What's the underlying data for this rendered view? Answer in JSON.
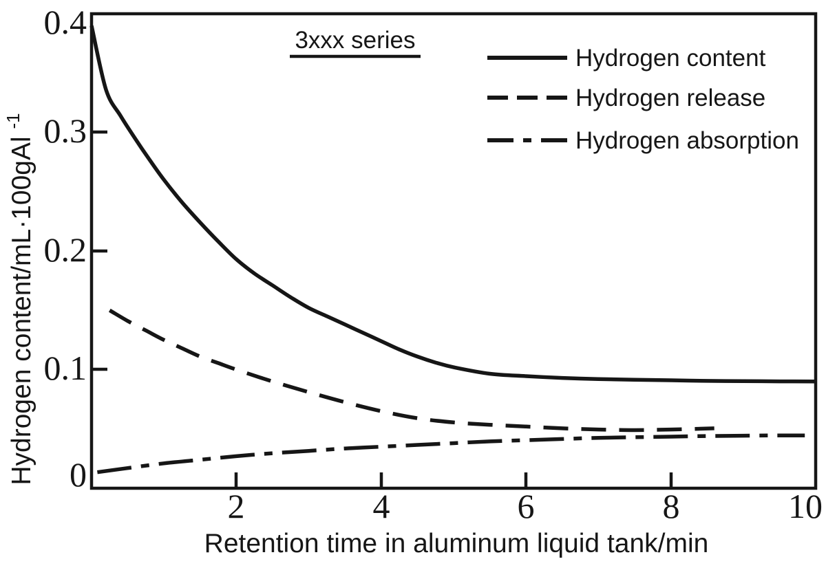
{
  "chart_data": {
    "type": "line",
    "annotation": "3xxx series",
    "xlabel": "Retention time in aluminum liquid tank/min",
    "ylabel": "Hydrogen content/mL·100gAl",
    "ylabel_superscript": "-1",
    "xlim": [
      0,
      10
    ],
    "ylim": [
      0,
      0.4
    ],
    "grid": false,
    "legend_position": "top-right",
    "line_color": "#161616",
    "x_axis": {
      "tick_labels": [
        "2",
        "4",
        "6",
        "8",
        "10"
      ],
      "tick_values": [
        2,
        4,
        6,
        8,
        10
      ]
    },
    "y_axis": {
      "tick_labels": [
        "0",
        "0.1",
        "0.2",
        "0.3",
        "0.4"
      ],
      "tick_values": [
        0,
        0.1,
        0.2,
        0.3,
        0.4
      ]
    },
    "series": [
      {
        "name": "Hydrogen content",
        "style": "solid",
        "points": [
          [
            0,
            0.39
          ],
          [
            0.2,
            0.336
          ],
          [
            0.4,
            0.314
          ],
          [
            0.6,
            0.295
          ],
          [
            0.8,
            0.277
          ],
          [
            1,
            0.26
          ],
          [
            1.25,
            0.241
          ],
          [
            1.5,
            0.224
          ],
          [
            1.75,
            0.208
          ],
          [
            2,
            0.193
          ],
          [
            2.25,
            0.181
          ],
          [
            2.5,
            0.171
          ],
          [
            2.75,
            0.161
          ],
          [
            3,
            0.152
          ],
          [
            3.25,
            0.145
          ],
          [
            3.5,
            0.138
          ],
          [
            3.75,
            0.131
          ],
          [
            4,
            0.124
          ],
          [
            4.25,
            0.117
          ],
          [
            4.5,
            0.111
          ],
          [
            4.75,
            0.106
          ],
          [
            5,
            0.102
          ],
          [
            5.5,
            0.0965
          ],
          [
            6,
            0.0945
          ],
          [
            6.5,
            0.093
          ],
          [
            7,
            0.092
          ],
          [
            7.5,
            0.0915
          ],
          [
            8,
            0.091
          ],
          [
            8.5,
            0.0905
          ],
          [
            9,
            0.0903
          ],
          [
            9.5,
            0.0901
          ],
          [
            10,
            0.09
          ]
        ]
      },
      {
        "name": "Hydrogen release",
        "style": "dashed",
        "points": [
          [
            0.25,
            0.15
          ],
          [
            0.5,
            0.141
          ],
          [
            0.75,
            0.133
          ],
          [
            1,
            0.125
          ],
          [
            1.25,
            0.118
          ],
          [
            1.5,
            0.111
          ],
          [
            1.75,
            0.1055
          ],
          [
            2,
            0.1
          ],
          [
            2.5,
            0.09
          ],
          [
            3,
            0.081
          ],
          [
            3.5,
            0.0725
          ],
          [
            4,
            0.065
          ],
          [
            4.5,
            0.059
          ],
          [
            5,
            0.0555
          ],
          [
            5.5,
            0.0535
          ],
          [
            6,
            0.052
          ],
          [
            6.5,
            0.0505
          ],
          [
            7,
            0.0495
          ],
          [
            7.5,
            0.049
          ],
          [
            8,
            0.0495
          ],
          [
            8.6,
            0.0505
          ]
        ]
      },
      {
        "name": "Hydrogen absorption",
        "style": "dash-dot",
        "points": [
          [
            0.08,
            0.0135
          ],
          [
            0.5,
            0.017
          ],
          [
            1,
            0.021
          ],
          [
            1.5,
            0.024
          ],
          [
            2,
            0.027
          ],
          [
            2.5,
            0.0295
          ],
          [
            3,
            0.0315
          ],
          [
            3.5,
            0.0335
          ],
          [
            4,
            0.035
          ],
          [
            4.5,
            0.0365
          ],
          [
            5,
            0.038
          ],
          [
            5.5,
            0.0395
          ],
          [
            6,
            0.0405
          ],
          [
            6.5,
            0.0415
          ],
          [
            7,
            0.0425
          ],
          [
            7.5,
            0.043
          ],
          [
            8,
            0.0435
          ],
          [
            8.5,
            0.044
          ],
          [
            9,
            0.0443
          ],
          [
            9.5,
            0.0445
          ],
          [
            9.85,
            0.0445
          ]
        ]
      }
    ]
  }
}
